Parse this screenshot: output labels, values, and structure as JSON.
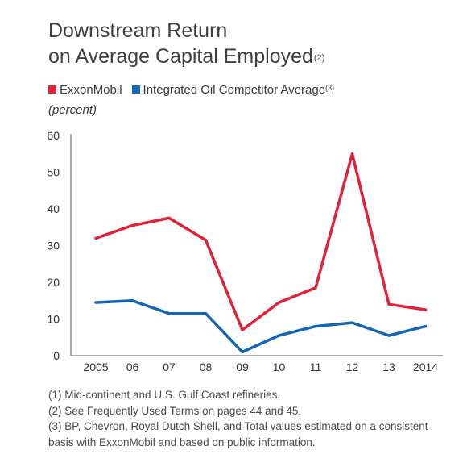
{
  "title": {
    "line1": "Downstream Return",
    "line2": "on Average Capital Employed",
    "footnote_ref": "(2)"
  },
  "legend": {
    "items": [
      {
        "label": "ExxonMobil",
        "ref": "",
        "color": "#e0223a"
      },
      {
        "label": "Integrated Oil Competitor Average",
        "ref": "(3)",
        "color": "#1565b0"
      }
    ]
  },
  "unit_label": "(percent)",
  "chart_data": {
    "type": "line",
    "title": "Downstream Return on Average Capital Employed",
    "ylabel": "(percent)",
    "xlabel": "",
    "categories": [
      "2005",
      "06",
      "07",
      "08",
      "09",
      "10",
      "11",
      "12",
      "13",
      "2014"
    ],
    "ylim": [
      0,
      60
    ],
    "yticks": [
      0,
      10,
      20,
      30,
      40,
      50,
      60
    ],
    "grid": false,
    "legend_position": "top-left",
    "series": [
      {
        "name": "ExxonMobil",
        "color": "#e0223a",
        "values": [
          32,
          35.5,
          37.5,
          31.5,
          7,
          14.5,
          18.5,
          55,
          14,
          12.5
        ]
      },
      {
        "name": "Integrated Oil Competitor Average",
        "color": "#1565b0",
        "values": [
          14.5,
          15,
          11.5,
          11.5,
          1,
          5.5,
          8,
          9,
          5.5,
          8
        ]
      }
    ]
  },
  "notes": [
    "(1) Mid-continent and U.S. Gulf Coast refineries.",
    "(2) See Frequently Used Terms on pages 44 and 45.",
    "(3) BP, Chevron, Royal Dutch Shell, and Total values estimated on a consistent basis with ExxonMobil and based on public information."
  ]
}
